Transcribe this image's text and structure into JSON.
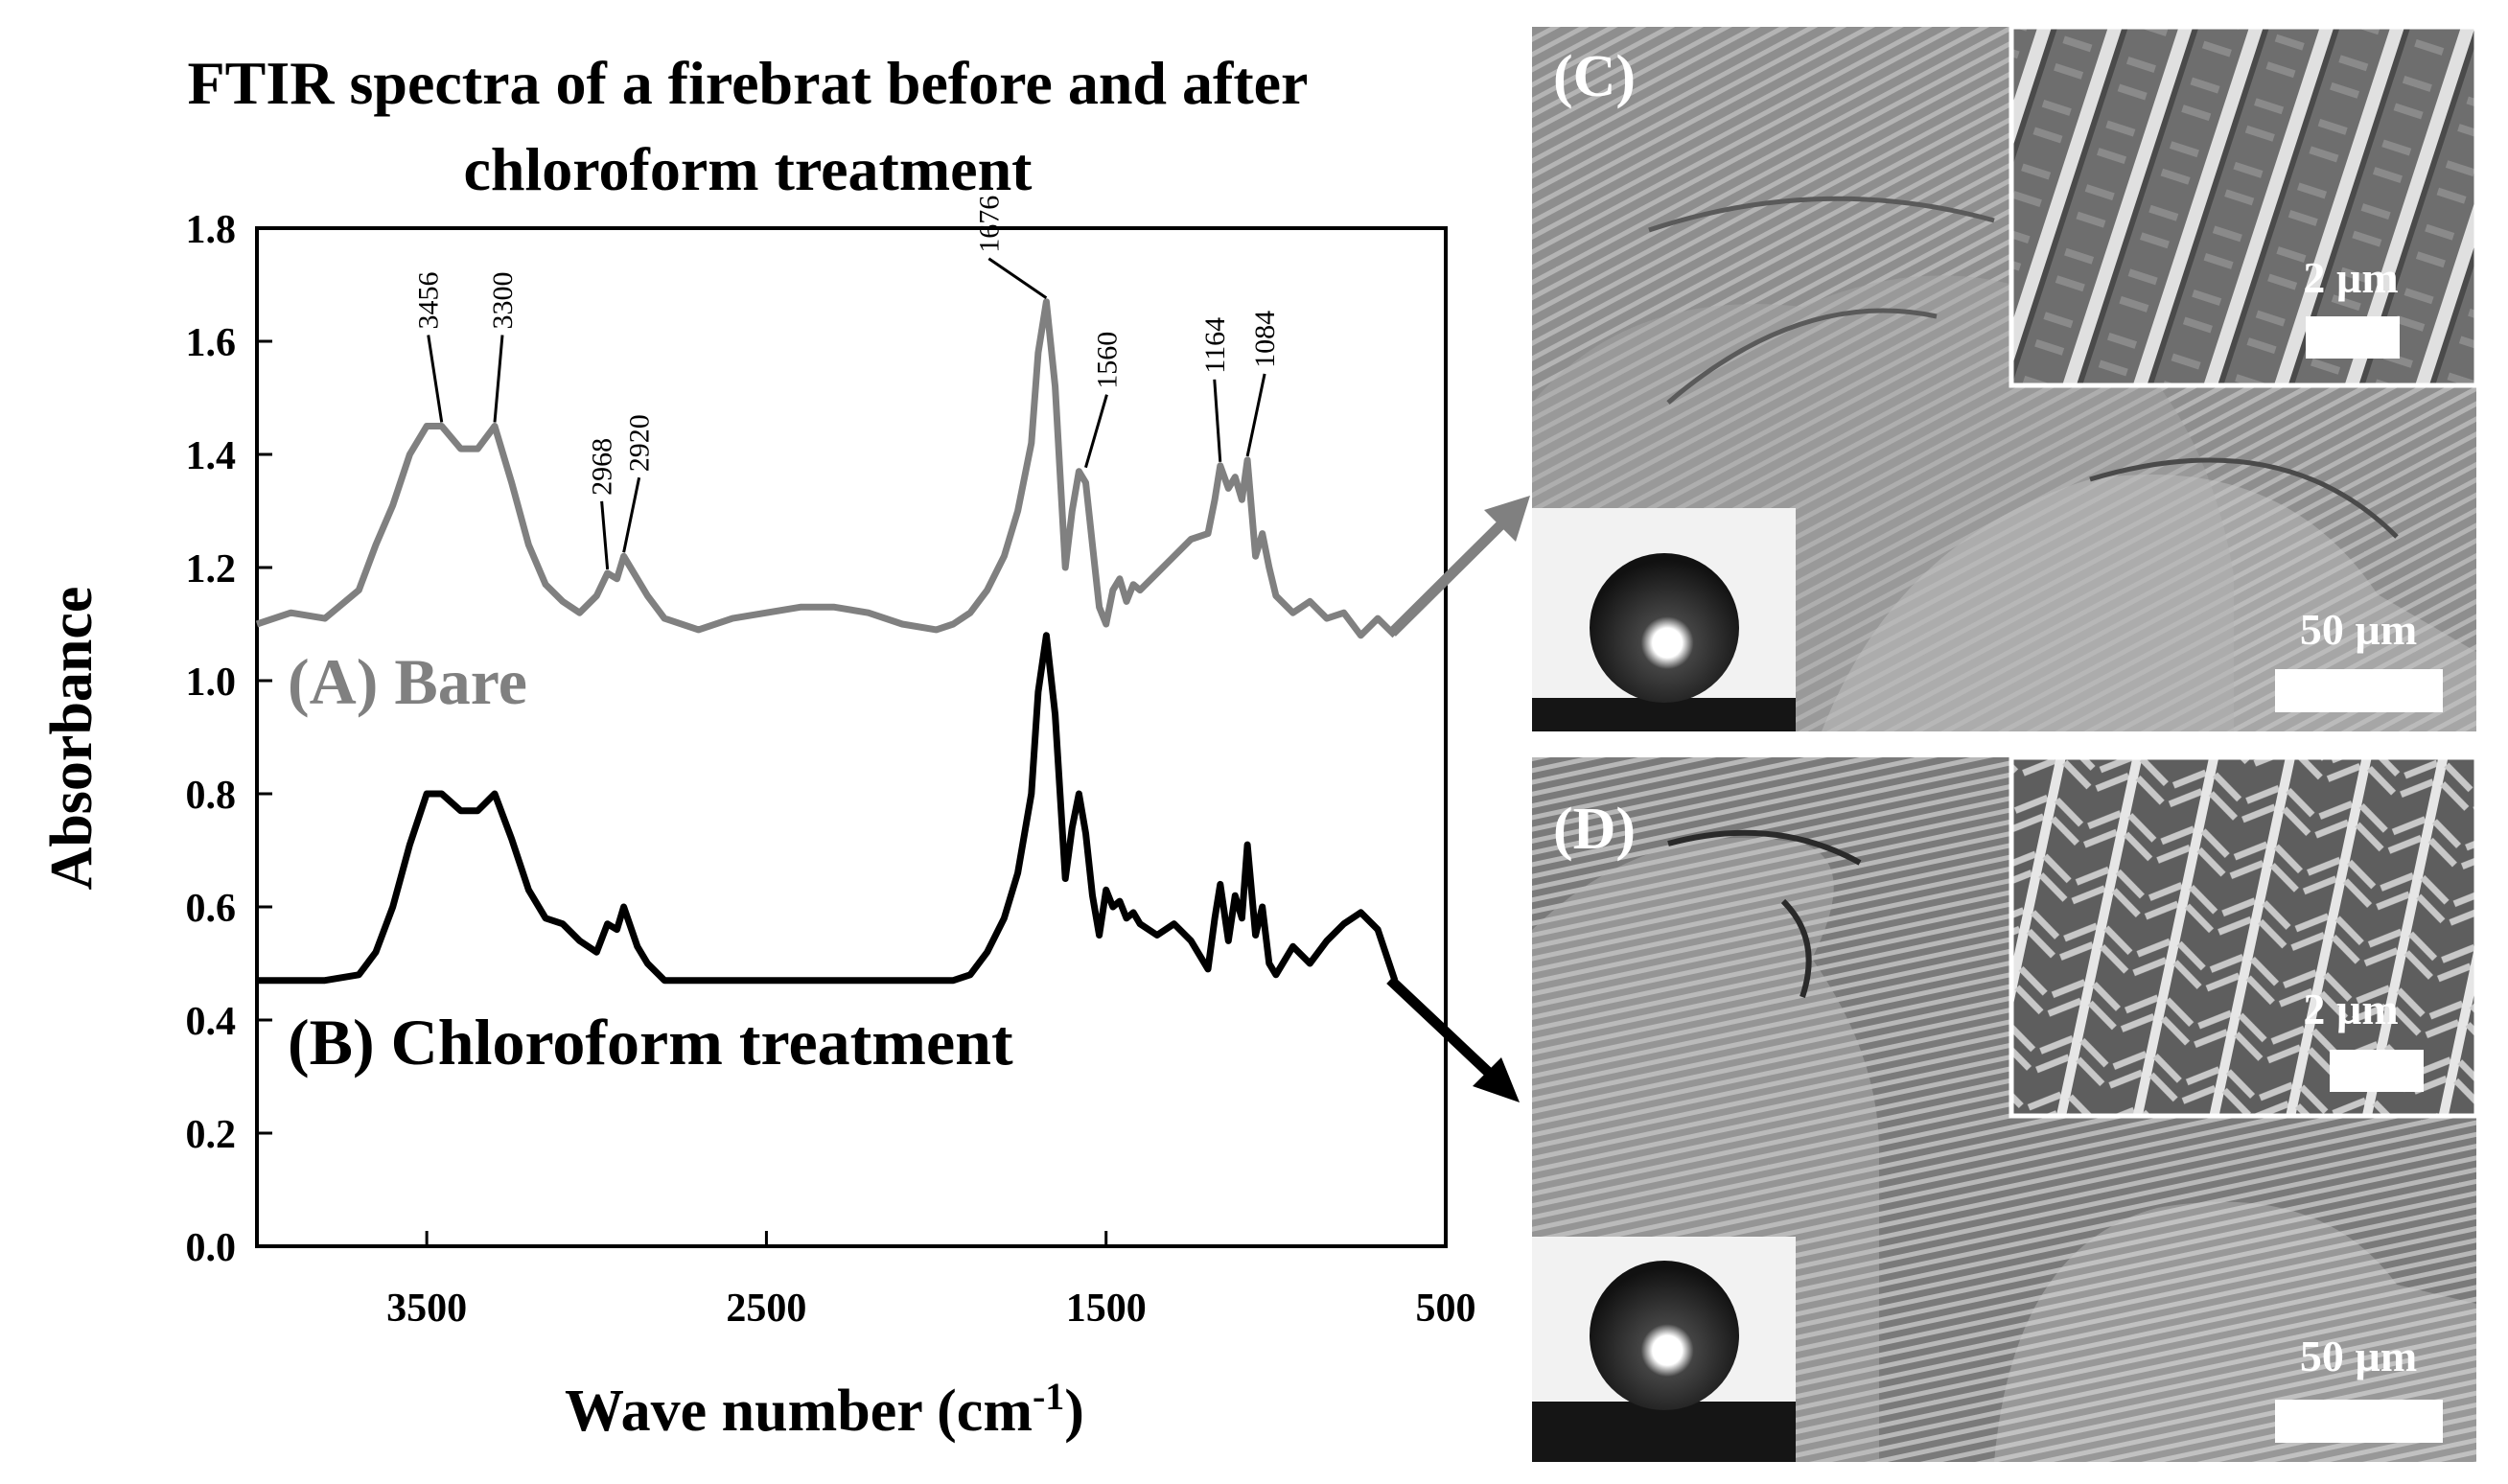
{
  "chart_data": {
    "type": "line",
    "title": "FTIR spectra of a firebrat before and after chloroform treatment",
    "title_lines": [
      "FTIR spectra of a firebrat before and after",
      "chloroform treatment"
    ],
    "xlabel": "Wave number (cm-1)",
    "xlabel_main": "Wave number (cm",
    "xlabel_sup": "-1",
    "xlabel_close": ")",
    "ylabel": "Absorbance",
    "xlim": [
      4000,
      500
    ],
    "ylim": [
      0.0,
      1.8
    ],
    "x_reversed": true,
    "grid": false,
    "x_ticks": [
      3500,
      2500,
      1500,
      500
    ],
    "x_tick_labels": [
      "3500",
      "2500",
      "1500",
      "500"
    ],
    "y_ticks": [
      0.0,
      0.2,
      0.4,
      0.6,
      0.8,
      1.0,
      1.2,
      1.4,
      1.6,
      1.8
    ],
    "y_tick_labels": [
      "0.0",
      "0.2",
      "0.4",
      "0.6",
      "0.8",
      "1.0",
      "1.2",
      "1.4",
      "1.6",
      "1.8"
    ],
    "series": [
      {
        "name": "(A) Bare",
        "color": "#808080",
        "x": [
          4000,
          3900,
          3800,
          3700,
          3650,
          3600,
          3550,
          3500,
          3456,
          3400,
          3350,
          3300,
          3250,
          3200,
          3150,
          3100,
          3050,
          3000,
          2968,
          2940,
          2920,
          2880,
          2850,
          2800,
          2700,
          2600,
          2500,
          2400,
          2300,
          2200,
          2100,
          2000,
          1950,
          1900,
          1850,
          1800,
          1760,
          1720,
          1700,
          1676,
          1650,
          1620,
          1600,
          1580,
          1560,
          1540,
          1520,
          1500,
          1480,
          1460,
          1440,
          1420,
          1400,
          1350,
          1300,
          1250,
          1200,
          1180,
          1164,
          1140,
          1120,
          1100,
          1084,
          1060,
          1040,
          1020,
          1000,
          950,
          900,
          850,
          800,
          750,
          700,
          650
        ],
        "values": [
          1.1,
          1.12,
          1.11,
          1.16,
          1.24,
          1.31,
          1.4,
          1.45,
          1.45,
          1.41,
          1.41,
          1.45,
          1.35,
          1.24,
          1.17,
          1.14,
          1.12,
          1.15,
          1.19,
          1.18,
          1.22,
          1.18,
          1.15,
          1.11,
          1.09,
          1.11,
          1.12,
          1.13,
          1.13,
          1.12,
          1.1,
          1.09,
          1.1,
          1.12,
          1.16,
          1.22,
          1.3,
          1.42,
          1.58,
          1.67,
          1.52,
          1.2,
          1.3,
          1.37,
          1.35,
          1.24,
          1.13,
          1.1,
          1.16,
          1.18,
          1.14,
          1.17,
          1.16,
          1.19,
          1.22,
          1.25,
          1.26,
          1.32,
          1.38,
          1.34,
          1.36,
          1.32,
          1.39,
          1.22,
          1.26,
          1.2,
          1.15,
          1.12,
          1.14,
          1.11,
          1.12,
          1.08,
          1.11,
          1.08
        ]
      },
      {
        "name": "(B) Chloroform treatment",
        "color": "#000000",
        "x": [
          4000,
          3900,
          3800,
          3700,
          3650,
          3600,
          3550,
          3500,
          3456,
          3400,
          3350,
          3300,
          3250,
          3200,
          3150,
          3100,
          3050,
          3000,
          2968,
          2940,
          2920,
          2880,
          2850,
          2800,
          2700,
          2600,
          2500,
          2400,
          2300,
          2200,
          2100,
          2000,
          1950,
          1900,
          1850,
          1800,
          1760,
          1720,
          1700,
          1676,
          1650,
          1620,
          1600,
          1580,
          1560,
          1540,
          1520,
          1500,
          1480,
          1460,
          1440,
          1420,
          1400,
          1350,
          1300,
          1250,
          1200,
          1180,
          1164,
          1140,
          1120,
          1100,
          1084,
          1060,
          1040,
          1020,
          1000,
          950,
          900,
          850,
          800,
          750,
          700,
          650
        ],
        "values": [
          0.47,
          0.47,
          0.47,
          0.48,
          0.52,
          0.6,
          0.71,
          0.8,
          0.8,
          0.77,
          0.77,
          0.8,
          0.72,
          0.63,
          0.58,
          0.57,
          0.54,
          0.52,
          0.57,
          0.56,
          0.6,
          0.53,
          0.5,
          0.47,
          0.47,
          0.47,
          0.47,
          0.47,
          0.47,
          0.47,
          0.47,
          0.47,
          0.47,
          0.48,
          0.52,
          0.58,
          0.66,
          0.8,
          0.98,
          1.08,
          0.94,
          0.65,
          0.74,
          0.8,
          0.73,
          0.62,
          0.55,
          0.63,
          0.6,
          0.61,
          0.58,
          0.59,
          0.57,
          0.55,
          0.57,
          0.54,
          0.49,
          0.58,
          0.64,
          0.54,
          0.62,
          0.58,
          0.71,
          0.55,
          0.6,
          0.5,
          0.48,
          0.53,
          0.5,
          0.54,
          0.57,
          0.59,
          0.56,
          0.47
        ]
      }
    ],
    "peak_labels": [
      {
        "text": "3456",
        "x": 3456,
        "y": 1.45
      },
      {
        "text": "3300",
        "x": 3300,
        "y": 1.45
      },
      {
        "text": "2968",
        "x": 2968,
        "y": 1.19
      },
      {
        "text": "2920",
        "x": 2920,
        "y": 1.22
      },
      {
        "text": "1676",
        "x": 1676,
        "y": 1.67
      },
      {
        "text": "1560",
        "x": 1560,
        "y": 1.37
      },
      {
        "text": "1164",
        "x": 1164,
        "y": 1.38
      },
      {
        "text": "1084",
        "x": 1084,
        "y": 1.39
      }
    ]
  },
  "panels": {
    "c": {
      "label": "(C)",
      "inset_scale": "2 µm",
      "main_scale": "50 µm"
    },
    "d": {
      "label": "(D)",
      "inset_scale": "2 µm",
      "main_scale": "50 µm"
    }
  },
  "colors": {
    "bare": "#808080",
    "treated": "#000000",
    "image_gray": "#9a9a9a"
  }
}
